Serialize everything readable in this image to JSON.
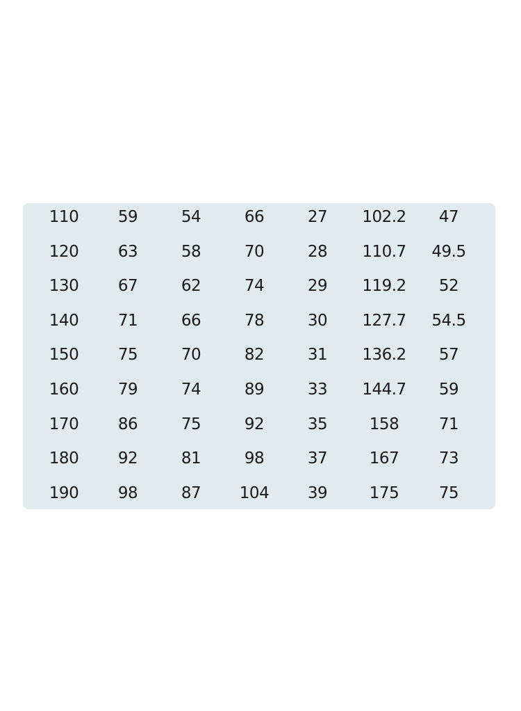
{
  "table": {
    "rows": [
      [
        "110",
        "59",
        "54",
        "66",
        "27",
        "102.2",
        "47"
      ],
      [
        "120",
        "63",
        "58",
        "70",
        "28",
        "110.7",
        "49.5"
      ],
      [
        "130",
        "67",
        "62",
        "74",
        "29",
        "119.2",
        "52"
      ],
      [
        "140",
        "71",
        "66",
        "78",
        "30",
        "127.7",
        "54.5"
      ],
      [
        "150",
        "75",
        "70",
        "82",
        "31",
        "136.2",
        "57"
      ],
      [
        "160",
        "79",
        "74",
        "89",
        "33",
        "144.7",
        "59"
      ],
      [
        "170",
        "86",
        "75",
        "92",
        "35",
        "158",
        "71"
      ],
      [
        "180",
        "92",
        "81",
        "98",
        "37",
        "167",
        "73"
      ],
      [
        "190",
        "98",
        "87",
        "104",
        "39",
        "175",
        "75"
      ]
    ],
    "background_color": "#e1ebef"
  }
}
